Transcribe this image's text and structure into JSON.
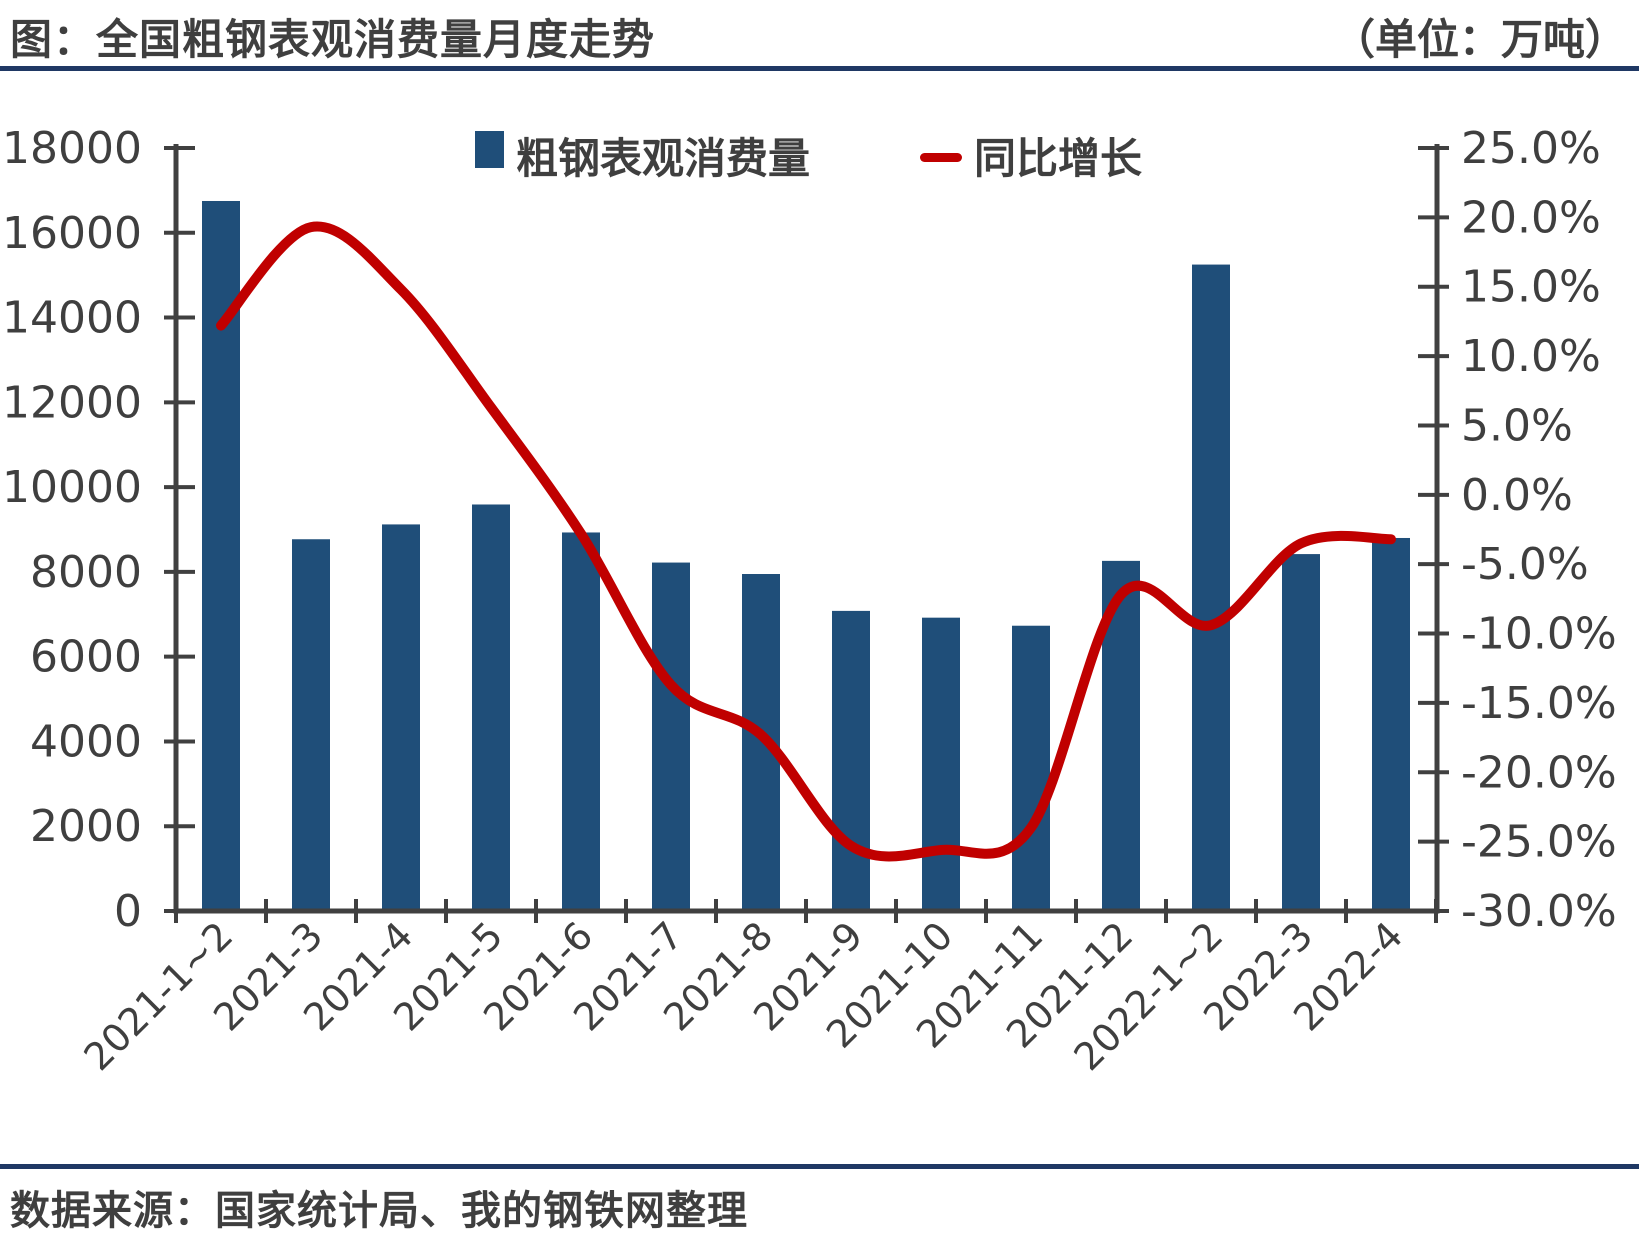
{
  "header": {
    "title": "图：全国粗钢表观消费量月度走势",
    "unit": "（单位：万吨）"
  },
  "footer": {
    "source": "数据来源：国家统计局、我的钢铁网整理"
  },
  "colors": {
    "bar": "#1F4E79",
    "line": "#C00000",
    "rule": "#1F3864",
    "text": "#3F3F3F",
    "axis": "#404040"
  },
  "chart_data": {
    "type": "bar",
    "subtype": "bar-line-combo-dual-axis",
    "title": "全国粗钢表观消费量月度走势",
    "unit": "万吨",
    "grid": false,
    "smoothed_line": true,
    "legend_position": "top-center",
    "categories": [
      "2021-1~2",
      "2021-3",
      "2021-4",
      "2021-5",
      "2021-6",
      "2021-7",
      "2021-8",
      "2021-9",
      "2021-10",
      "2021-11",
      "2021-12",
      "2022-1~2",
      "2022-3",
      "2022-4"
    ],
    "series": [
      {
        "name": "粗钢表观消费量",
        "type": "bar",
        "axis": "left",
        "unit": "万吨",
        "values": [
          16750,
          8770,
          9120,
          9590,
          8930,
          8220,
          7950,
          7080,
          6920,
          6730,
          8260,
          15250,
          8420,
          8800
        ]
      },
      {
        "name": "同比增长",
        "type": "line",
        "axis": "right",
        "unit": "%",
        "values": [
          12.2,
          19.3,
          14.8,
          6.3,
          -2.8,
          -13.7,
          -17.3,
          -25.3,
          -25.6,
          -24.0,
          -7.2,
          -9.4,
          -3.5,
          -3.2
        ]
      }
    ],
    "left_axis": {
      "min": 0,
      "max": 18000,
      "step": 2000,
      "labels": [
        "18000",
        "16000",
        "14000",
        "12000",
        "10000",
        "8000",
        "6000",
        "4000",
        "2000",
        "0"
      ]
    },
    "right_axis": {
      "min": -30,
      "max": 25,
      "step": 5,
      "labels": [
        "25.0%",
        "20.0%",
        "15.0%",
        "10.0%",
        "5.0%",
        "0.0%",
        "-5.0%",
        "-10.0%",
        "-15.0%",
        "-20.0%",
        "-25.0%",
        "-30.0%"
      ]
    }
  }
}
